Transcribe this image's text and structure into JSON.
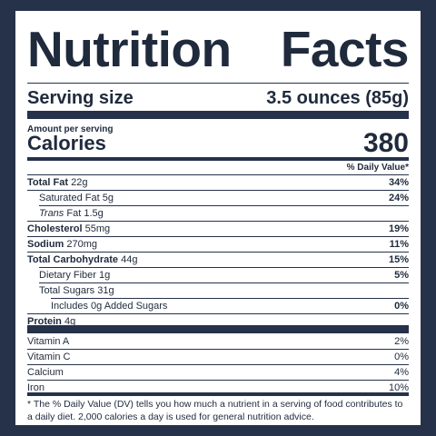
{
  "title": {
    "word1": "Nutrition",
    "word2": "Facts"
  },
  "serving": {
    "label": "Serving size",
    "value": "3.5 ounces (85g)"
  },
  "amount_per_serving": "Amount per serving",
  "calories": {
    "label": "Calories",
    "value": "380"
  },
  "daily_value_header": "% Daily Value*",
  "nutrients": [
    {
      "name": "Total Fat",
      "amount": "22g",
      "dv": "34%"
    },
    {
      "name": "Saturated Fat",
      "amount": "5g",
      "dv": "24%"
    },
    {
      "name": "Trans",
      "name_suffix": "Fat",
      "amount": "1.5g",
      "dv": ""
    },
    {
      "name": "Cholesterol",
      "amount": "55mg",
      "dv": "19%"
    },
    {
      "name": "Sodium",
      "amount": "270mg",
      "dv": "11%"
    },
    {
      "name": "Total Carbohydrate",
      "amount": "44g",
      "dv": "15%"
    },
    {
      "name": "Dietary Fiber",
      "amount": "1g",
      "dv": "5%"
    },
    {
      "name": "Total Sugars",
      "amount": "31g",
      "dv": ""
    },
    {
      "name": "Includes 0g Added Sugars",
      "amount": "",
      "dv": "0%"
    },
    {
      "name": "Protein",
      "amount": "4g",
      "dv": ""
    }
  ],
  "vitamins": [
    {
      "name": "Vitamin A",
      "dv": "2%"
    },
    {
      "name": "Vitamin C",
      "dv": "0%"
    },
    {
      "name": "Calcium",
      "dv": "4%"
    },
    {
      "name": "Iron",
      "dv": "10%"
    }
  ],
  "footnote": "* The % Daily Value (DV) tells you how much a nutrient in a serving of food contributes to a daily diet. 2,000 calories a day is used for general nutrition advice.",
  "colors": {
    "border": "#26324a",
    "text": "#1f2a3c",
    "background": "#ffffff"
  }
}
